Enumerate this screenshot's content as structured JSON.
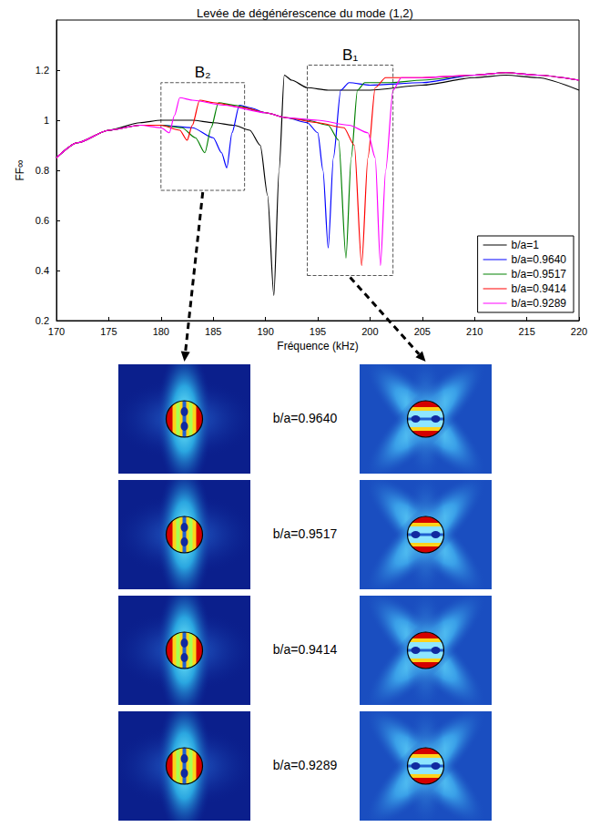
{
  "chart_data": {
    "type": "line",
    "title": "Levée de dégénérescence du mode (1,2)",
    "x_label": "Fréquence (kHz)",
    "y_label": "FF∞",
    "xlim": [
      170,
      220
    ],
    "xticks": [
      170,
      175,
      180,
      185,
      190,
      195,
      200,
      205,
      210,
      215,
      220
    ],
    "ylim": [
      0.2,
      1.4
    ],
    "yticks": [
      0.2,
      0.4,
      0.6,
      0.8,
      1,
      1.2
    ],
    "grid": false,
    "legend": "lower right",
    "series": [
      {
        "name": "b/a=1",
        "color": "#000000",
        "x": [
          170,
          172,
          175,
          178,
          180,
          183,
          185,
          187,
          188.5,
          189.5,
          190.2,
          190.8,
          191.3,
          191.8,
          192.5,
          194,
          196,
          200,
          205,
          210,
          213,
          216,
          220
        ],
        "values": [
          0.85,
          0.91,
          0.96,
          0.99,
          1.0,
          1.0,
          0.99,
          0.98,
          0.96,
          0.9,
          0.7,
          0.3,
          0.8,
          1.18,
          1.16,
          1.13,
          1.12,
          1.12,
          1.14,
          1.17,
          1.18,
          1.17,
          1.12
        ]
      },
      {
        "name": "b/a=0.9640",
        "color": "#0000ff",
        "x": [
          170,
          172,
          175,
          178,
          180,
          183,
          185,
          185.8,
          186.3,
          186.8,
          187.5,
          188.5,
          190,
          192,
          194,
          195,
          195.5,
          196,
          196.5,
          197.2,
          198,
          200,
          205,
          210,
          213,
          216,
          220
        ],
        "values": [
          0.85,
          0.91,
          0.96,
          0.98,
          0.98,
          0.97,
          0.93,
          0.87,
          0.81,
          0.95,
          1.06,
          1.05,
          1.03,
          1.01,
          0.99,
          0.95,
          0.8,
          0.49,
          0.85,
          1.12,
          1.15,
          1.14,
          1.15,
          1.18,
          1.19,
          1.18,
          1.16
        ]
      },
      {
        "name": "b/a=0.9517",
        "color": "#008000",
        "x": [
          170,
          172,
          175,
          178,
          180,
          182,
          183.3,
          184.2,
          184.8,
          185.5,
          187,
          190,
          192,
          194,
          196,
          197,
          197.7,
          198.2,
          198.8,
          199.5,
          202,
          205,
          210,
          213,
          216,
          220
        ],
        "values": [
          0.85,
          0.91,
          0.96,
          0.98,
          0.98,
          0.97,
          0.93,
          0.87,
          0.97,
          1.07,
          1.06,
          1.03,
          1.01,
          1.0,
          0.98,
          0.92,
          0.45,
          0.85,
          1.12,
          1.15,
          1.15,
          1.16,
          1.18,
          1.19,
          1.18,
          1.16
        ]
      },
      {
        "name": "b/a=0.9414",
        "color": "#ff0000",
        "x": [
          170,
          172,
          175,
          178,
          180,
          181.8,
          182.5,
          183,
          183.7,
          185,
          188,
          190,
          192,
          195,
          197.5,
          198.5,
          199.2,
          199.8,
          200.5,
          201.5,
          205,
          210,
          213,
          216,
          220
        ],
        "values": [
          0.85,
          0.91,
          0.96,
          0.98,
          0.98,
          0.96,
          0.92,
          0.98,
          1.08,
          1.07,
          1.05,
          1.03,
          1.01,
          0.99,
          0.97,
          0.9,
          0.42,
          0.85,
          1.13,
          1.17,
          1.17,
          1.18,
          1.19,
          1.18,
          1.16
        ]
      },
      {
        "name": "b/a=0.9289",
        "color": "#ff00ff",
        "x": [
          170,
          172,
          175,
          178,
          180,
          180.8,
          181.3,
          181.8,
          183,
          186,
          190,
          192,
          195,
          198,
          199.8,
          200.5,
          201,
          201.5,
          202.2,
          203,
          205,
          210,
          213,
          216,
          220
        ],
        "values": [
          0.85,
          0.91,
          0.96,
          0.98,
          0.97,
          0.95,
          1.02,
          1.09,
          1.08,
          1.06,
          1.03,
          1.01,
          1.0,
          0.98,
          0.95,
          0.85,
          0.42,
          0.8,
          1.12,
          1.17,
          1.17,
          1.18,
          1.19,
          1.18,
          1.16
        ]
      }
    ],
    "boxes": [
      {
        "label": "B₂",
        "x": [
          180,
          188
        ],
        "y": [
          0.72,
          1.15
        ]
      },
      {
        "label": "B₁",
        "x": [
          194,
          202.2
        ],
        "y": [
          0.38,
          1.22
        ]
      }
    ]
  },
  "field_map_labels": [
    "b/a=0.9640",
    "b/a=0.9517",
    "b/a=0.9414",
    "b/a=0.9289"
  ]
}
